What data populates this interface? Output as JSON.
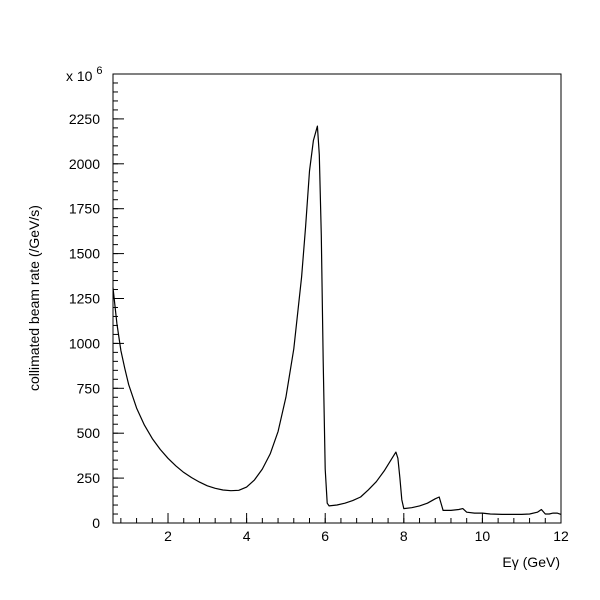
{
  "chart_data": {
    "type": "line",
    "title": "",
    "xlabel": "Eγ (GeV)",
    "ylabel": "collimated beam rate (/GeV/s)",
    "y_multiplier": {
      "base": "x 10",
      "exponent": "6"
    },
    "xlim": [
      0.6,
      12
    ],
    "ylim": [
      0,
      2500
    ],
    "x_ticks": [
      2,
      4,
      6,
      8,
      10,
      12
    ],
    "x_tick_labels": [
      "2",
      "4",
      "6",
      "8",
      "10",
      "12"
    ],
    "y_ticks": [
      0,
      250,
      500,
      750,
      1000,
      1250,
      1500,
      1750,
      2000,
      2250
    ],
    "y_tick_labels": [
      "0",
      "250",
      "500",
      "750",
      "1000",
      "1250",
      "1500",
      "1750",
      "2000",
      "2250"
    ],
    "x_minor_step": 0.4,
    "y_minor_step": 50,
    "grid": false,
    "series": [
      {
        "color": "#000000",
        "x": [
          0.6,
          0.7,
          0.8,
          0.9,
          1.0,
          1.2,
          1.4,
          1.6,
          1.8,
          2.0,
          2.2,
          2.4,
          2.6,
          2.8,
          3.0,
          3.2,
          3.4,
          3.6,
          3.8,
          4.0,
          4.2,
          4.4,
          4.6,
          4.8,
          5.0,
          5.2,
          5.4,
          5.5,
          5.6,
          5.7,
          5.8,
          5.85,
          5.9,
          5.95,
          6.0,
          6.05,
          6.1,
          6.3,
          6.5,
          6.7,
          6.9,
          7.1,
          7.3,
          7.5,
          7.7,
          7.8,
          7.85,
          7.9,
          7.95,
          8.0,
          8.2,
          8.4,
          8.6,
          8.8,
          8.9,
          9.0,
          9.2,
          9.4,
          9.5,
          9.6,
          9.8,
          10.0,
          10.2,
          10.5,
          10.8,
          11.0,
          11.2,
          11.4,
          11.5,
          11.6,
          11.7,
          11.8,
          11.9,
          12.0
        ],
        "values": [
          1310,
          1110,
          960,
          860,
          770,
          640,
          545,
          470,
          410,
          360,
          318,
          282,
          253,
          228,
          207,
          193,
          184,
          180,
          182,
          200,
          240,
          300,
          385,
          510,
          700,
          970,
          1370,
          1650,
          1960,
          2130,
          2210,
          2050,
          1600,
          900,
          300,
          110,
          95,
          100,
          110,
          125,
          145,
          185,
          230,
          290,
          360,
          395,
          360,
          250,
          130,
          80,
          85,
          95,
          110,
          135,
          145,
          70,
          70,
          75,
          80,
          60,
          55,
          55,
          50,
          48,
          48,
          48,
          50,
          60,
          75,
          50,
          50,
          55,
          55,
          48
        ]
      }
    ]
  }
}
